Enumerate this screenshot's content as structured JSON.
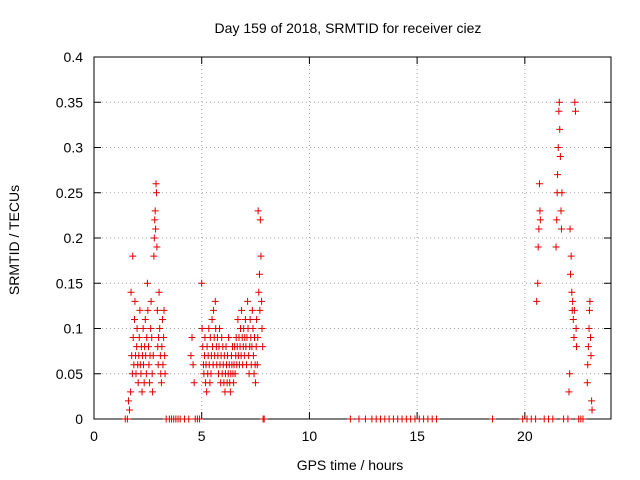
{
  "chart_data": {
    "type": "scatter",
    "title": "Day 159 of 2018, SRMTID for receiver ciez",
    "xlabel": "GPS time / hours",
    "ylabel": "SRMTID / TECUs",
    "xlim": [
      0,
      24
    ],
    "ylim": [
      0,
      0.4
    ],
    "x_ticks": [
      0,
      5,
      10,
      15,
      20
    ],
    "y_ticks": [
      0,
      0.05,
      0.1,
      0.15,
      0.2,
      0.25,
      0.3,
      0.35,
      0.4
    ],
    "grid": true,
    "marker": "+",
    "marker_color": "#e00000",
    "series": [
      {
        "points": [
          [
            1.45,
            0.0
          ],
          [
            1.55,
            0.0
          ],
          [
            1.6,
            0.02
          ],
          [
            1.65,
            0.01
          ],
          [
            1.7,
            0.03
          ],
          [
            1.72,
            0.14
          ],
          [
            1.75,
            0.07
          ],
          [
            1.78,
            0.05
          ],
          [
            1.8,
            0.18
          ],
          [
            1.82,
            0.09
          ],
          [
            1.85,
            0.06
          ],
          [
            1.88,
            0.11
          ],
          [
            1.9,
            0.13
          ],
          [
            1.93,
            0.07
          ],
          [
            1.95,
            0.05
          ],
          [
            1.98,
            0.08
          ],
          [
            2.0,
            0.1
          ],
          [
            2.03,
            0.06
          ],
          [
            2.05,
            0.04
          ],
          [
            2.08,
            0.07
          ],
          [
            2.1,
            0.09
          ],
          [
            2.13,
            0.12
          ],
          [
            2.15,
            0.06
          ],
          [
            2.18,
            0.05
          ],
          [
            2.2,
            0.08
          ],
          [
            2.23,
            0.03
          ],
          [
            2.25,
            0.07
          ],
          [
            2.28,
            0.1
          ],
          [
            2.3,
            0.06
          ],
          [
            2.33,
            0.04
          ],
          [
            2.35,
            0.08
          ],
          [
            2.38,
            0.11
          ],
          [
            2.4,
            0.07
          ],
          [
            2.43,
            0.05
          ],
          [
            2.45,
            0.09
          ],
          [
            2.48,
            0.15
          ],
          [
            2.5,
            0.12
          ],
          [
            2.53,
            0.08
          ],
          [
            2.55,
            0.06
          ],
          [
            2.58,
            0.04
          ],
          [
            2.6,
            0.07
          ],
          [
            2.63,
            0.1
          ],
          [
            2.65,
            0.13
          ],
          [
            2.68,
            0.09
          ],
          [
            2.7,
            0.05
          ],
          [
            2.72,
            0.03
          ],
          [
            2.75,
            0.07
          ],
          [
            2.78,
            0.18
          ],
          [
            2.8,
            0.2
          ],
          [
            2.82,
            0.22
          ],
          [
            2.84,
            0.23
          ],
          [
            2.86,
            0.21
          ],
          [
            2.88,
            0.26
          ],
          [
            2.9,
            0.25
          ],
          [
            2.92,
            0.19
          ],
          [
            2.94,
            0.12
          ],
          [
            2.96,
            0.08
          ],
          [
            2.98,
            0.06
          ],
          [
            3.0,
            0.09
          ],
          [
            3.02,
            0.14
          ],
          [
            3.05,
            0.1
          ],
          [
            3.08,
            0.07
          ],
          [
            3.1,
            0.05
          ],
          [
            3.13,
            0.04
          ],
          [
            3.15,
            0.08
          ],
          [
            3.18,
            0.11
          ],
          [
            3.2,
            0.06
          ],
          [
            3.23,
            0.09
          ],
          [
            3.25,
            0.12
          ],
          [
            3.28,
            0.07
          ],
          [
            3.3,
            0.05
          ],
          [
            3.35,
            0.0
          ],
          [
            3.5,
            0.0
          ],
          [
            3.6,
            0.0
          ],
          [
            3.7,
            0.0
          ],
          [
            3.8,
            0.0
          ],
          [
            3.9,
            0.0
          ],
          [
            4.0,
            0.0
          ],
          [
            4.2,
            0.0
          ],
          [
            4.4,
            0.0
          ],
          [
            4.5,
            0.07
          ],
          [
            4.55,
            0.09
          ],
          [
            4.6,
            0.06
          ],
          [
            4.65,
            0.04
          ],
          [
            4.7,
            0.0
          ],
          [
            4.8,
            0.0
          ],
          [
            4.9,
            0.0
          ],
          [
            5.0,
            0.15
          ],
          [
            5.02,
            0.1
          ],
          [
            5.05,
            0.08
          ],
          [
            5.08,
            0.06
          ],
          [
            5.1,
            0.05
          ],
          [
            5.13,
            0.07
          ],
          [
            5.15,
            0.09
          ],
          [
            5.18,
            0.04
          ],
          [
            5.2,
            0.06
          ],
          [
            5.23,
            0.03
          ],
          [
            5.25,
            0.08
          ],
          [
            5.28,
            0.05
          ],
          [
            5.3,
            0.07
          ],
          [
            5.33,
            0.1
          ],
          [
            5.35,
            0.06
          ],
          [
            5.38,
            0.04
          ],
          [
            5.4,
            0.09
          ],
          [
            5.43,
            0.05
          ],
          [
            5.45,
            0.07
          ],
          [
            5.48,
            0.11
          ],
          [
            5.5,
            0.08
          ],
          [
            5.53,
            0.06
          ],
          [
            5.55,
            0.12
          ],
          [
            5.58,
            0.09
          ],
          [
            5.6,
            0.07
          ],
          [
            5.63,
            0.13
          ],
          [
            5.65,
            0.1
          ],
          [
            5.68,
            0.08
          ],
          [
            5.7,
            0.06
          ],
          [
            5.73,
            0.09
          ],
          [
            5.75,
            0.07
          ],
          [
            5.78,
            0.05
          ],
          [
            5.8,
            0.08
          ],
          [
            5.83,
            0.1
          ],
          [
            5.85,
            0.06
          ],
          [
            5.88,
            0.04
          ],
          [
            5.9,
            0.07
          ],
          [
            5.93,
            0.09
          ],
          [
            5.95,
            0.05
          ],
          [
            5.98,
            0.08
          ],
          [
            6.0,
            0.06
          ],
          [
            6.03,
            0.04
          ],
          [
            6.05,
            0.07
          ],
          [
            6.08,
            0.03
          ],
          [
            6.1,
            0.05
          ],
          [
            6.13,
            0.08
          ],
          [
            6.15,
            0.06
          ],
          [
            6.18,
            0.04
          ],
          [
            6.2,
            0.07
          ],
          [
            6.23,
            0.05
          ],
          [
            6.25,
            0.09
          ],
          [
            6.28,
            0.06
          ],
          [
            6.3,
            0.04
          ],
          [
            6.33,
            0.03
          ],
          [
            6.35,
            0.05
          ],
          [
            6.38,
            0.07
          ],
          [
            6.4,
            0.06
          ],
          [
            6.43,
            0.08
          ],
          [
            6.45,
            0.05
          ],
          [
            6.48,
            0.04
          ],
          [
            6.5,
            0.06
          ],
          [
            6.53,
            0.08
          ],
          [
            6.55,
            0.05
          ],
          [
            6.58,
            0.07
          ],
          [
            6.6,
            0.09
          ],
          [
            6.63,
            0.06
          ],
          [
            6.65,
            0.08
          ],
          [
            6.68,
            0.11
          ],
          [
            6.7,
            0.07
          ],
          [
            6.73,
            0.09
          ],
          [
            6.75,
            0.06
          ],
          [
            6.78,
            0.08
          ],
          [
            6.8,
            0.1
          ],
          [
            6.83,
            0.07
          ],
          [
            6.85,
            0.12
          ],
          [
            6.88,
            0.09
          ],
          [
            6.9,
            0.06
          ],
          [
            6.93,
            0.08
          ],
          [
            6.95,
            0.1
          ],
          [
            6.98,
            0.07
          ],
          [
            7.0,
            0.09
          ],
          [
            7.03,
            0.11
          ],
          [
            7.05,
            0.08
          ],
          [
            7.08,
            0.06
          ],
          [
            7.1,
            0.09
          ],
          [
            7.13,
            0.13
          ],
          [
            7.15,
            0.1
          ],
          [
            7.18,
            0.07
          ],
          [
            7.2,
            0.05
          ],
          [
            7.23,
            0.08
          ],
          [
            7.25,
            0.11
          ],
          [
            7.28,
            0.09
          ],
          [
            7.3,
            0.06
          ],
          [
            7.33,
            0.08
          ],
          [
            7.35,
            0.12
          ],
          [
            7.38,
            0.1
          ],
          [
            7.4,
            0.07
          ],
          [
            7.43,
            0.05
          ],
          [
            7.45,
            0.09
          ],
          [
            7.48,
            0.06
          ],
          [
            7.5,
            0.04
          ],
          [
            7.53,
            0.08
          ],
          [
            7.55,
            0.11
          ],
          [
            7.58,
            0.06
          ],
          [
            7.6,
            0.09
          ],
          [
            7.62,
            0.23
          ],
          [
            7.65,
            0.14
          ],
          [
            7.68,
            0.16
          ],
          [
            7.7,
            0.12
          ],
          [
            7.72,
            0.22
          ],
          [
            7.75,
            0.18
          ],
          [
            7.78,
            0.13
          ],
          [
            7.8,
            0.1
          ],
          [
            7.83,
            0.08
          ],
          [
            7.85,
            0.0
          ],
          [
            7.9,
            0.0
          ],
          [
            11.9,
            0.0
          ],
          [
            12.3,
            0.0
          ],
          [
            12.6,
            0.0
          ],
          [
            12.9,
            0.0
          ],
          [
            13.1,
            0.0
          ],
          [
            13.3,
            0.0
          ],
          [
            13.5,
            0.0
          ],
          [
            13.7,
            0.0
          ],
          [
            13.9,
            0.0
          ],
          [
            14.1,
            0.0
          ],
          [
            14.3,
            0.0
          ],
          [
            14.5,
            0.0
          ],
          [
            14.7,
            0.0
          ],
          [
            14.9,
            0.0
          ],
          [
            15.1,
            0.0
          ],
          [
            15.3,
            0.0
          ],
          [
            15.5,
            0.0
          ],
          [
            15.7,
            0.0
          ],
          [
            15.9,
            0.0
          ],
          [
            18.5,
            0.0
          ],
          [
            19.9,
            0.0
          ],
          [
            20.1,
            0.0
          ],
          [
            20.3,
            0.0
          ],
          [
            20.5,
            0.0
          ],
          [
            20.55,
            0.13
          ],
          [
            20.6,
            0.15
          ],
          [
            20.62,
            0.19
          ],
          [
            20.65,
            0.21
          ],
          [
            20.68,
            0.26
          ],
          [
            20.7,
            0.23
          ],
          [
            20.72,
            0.22
          ],
          [
            20.9,
            0.0
          ],
          [
            21.1,
            0.0
          ],
          [
            21.3,
            0.0
          ],
          [
            21.45,
            0.19
          ],
          [
            21.48,
            0.22
          ],
          [
            21.5,
            0.25
          ],
          [
            21.52,
            0.27
          ],
          [
            21.55,
            0.3
          ],
          [
            21.58,
            0.34
          ],
          [
            21.6,
            0.35
          ],
          [
            21.62,
            0.32
          ],
          [
            21.65,
            0.29
          ],
          [
            21.68,
            0.23
          ],
          [
            21.7,
            0.21
          ],
          [
            21.72,
            0.25
          ],
          [
            21.8,
            0.0
          ],
          [
            22.0,
            0.0
          ],
          [
            22.05,
            0.03
          ],
          [
            22.08,
            0.05
          ],
          [
            22.1,
            0.21
          ],
          [
            22.12,
            0.16
          ],
          [
            22.15,
            0.18
          ],
          [
            22.18,
            0.14
          ],
          [
            22.2,
            0.12
          ],
          [
            22.22,
            0.13
          ],
          [
            22.25,
            0.11
          ],
          [
            22.28,
            0.09
          ],
          [
            22.3,
            0.12
          ],
          [
            22.32,
            0.35
          ],
          [
            22.35,
            0.34
          ],
          [
            22.38,
            0.1
          ],
          [
            22.4,
            0.08
          ],
          [
            22.5,
            0.0
          ],
          [
            22.6,
            0.0
          ],
          [
            22.7,
            0.0
          ],
          [
            22.9,
            0.04
          ],
          [
            22.92,
            0.06
          ],
          [
            22.95,
            0.08
          ],
          [
            22.98,
            0.1
          ],
          [
            23.0,
            0.12
          ],
          [
            23.02,
            0.13
          ],
          [
            23.05,
            0.09
          ],
          [
            23.07,
            0.07
          ],
          [
            23.1,
            0.02
          ],
          [
            23.12,
            0.01
          ]
        ]
      }
    ]
  }
}
